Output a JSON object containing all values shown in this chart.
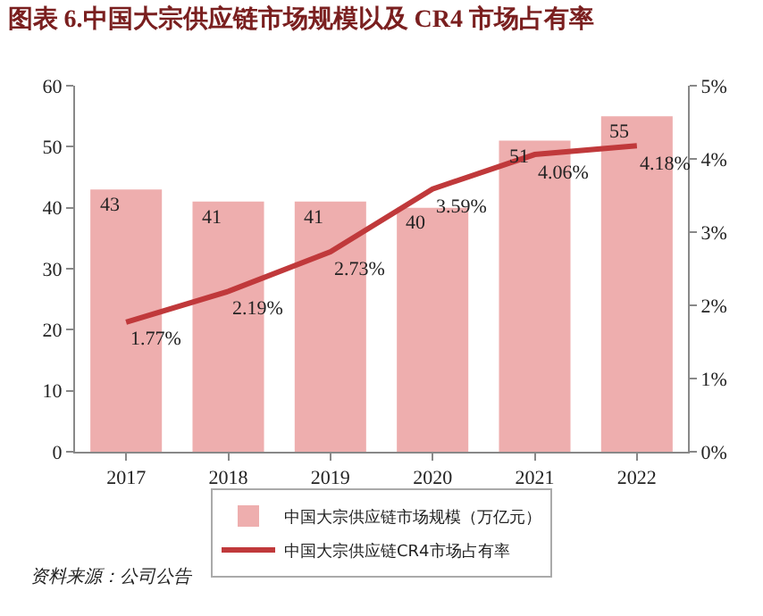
{
  "chart_data": {
    "type": "bar",
    "title": "图表 6.中国大宗供应链市场规模以及 CR4 市场占有率",
    "categories": [
      "2017",
      "2018",
      "2019",
      "2020",
      "2021",
      "2022"
    ],
    "series": [
      {
        "name": "中国大宗供应链市场规模（万亿元）",
        "color": "#eeaeae",
        "values": [
          43,
          41,
          41,
          40,
          51,
          55
        ],
        "value_labels": [
          "43",
          "41",
          "41",
          "40",
          "51",
          "55"
        ]
      },
      {
        "name": "中国大宗供应链CR4市场占有率",
        "type": "line",
        "axis": "y2",
        "color": "#c0393b",
        "values": [
          1.77,
          2.19,
          2.73,
          3.59,
          4.06,
          4.18
        ],
        "value_labels": [
          "1.77%",
          "2.19%",
          "2.73%",
          "3.59%",
          "4.06%",
          "4.18%"
        ]
      }
    ],
    "ylim": [
      0,
      60
    ],
    "yticks": [
      0,
      10,
      20,
      30,
      40,
      50,
      60
    ],
    "y2lim": [
      0,
      5
    ],
    "y2ticks": [
      {
        "value": 0,
        "label": "0%"
      },
      {
        "value": 1,
        "label": "1%"
      },
      {
        "value": 2,
        "label": "2%"
      },
      {
        "value": 3,
        "label": "3%"
      },
      {
        "value": 4,
        "label": "4%"
      },
      {
        "value": 5,
        "label": "5%"
      }
    ],
    "grid": false,
    "legend": "bottom",
    "marker": "none",
    "line_style": "solid",
    "annotations": [
      "资料来源：公司公告"
    ]
  }
}
